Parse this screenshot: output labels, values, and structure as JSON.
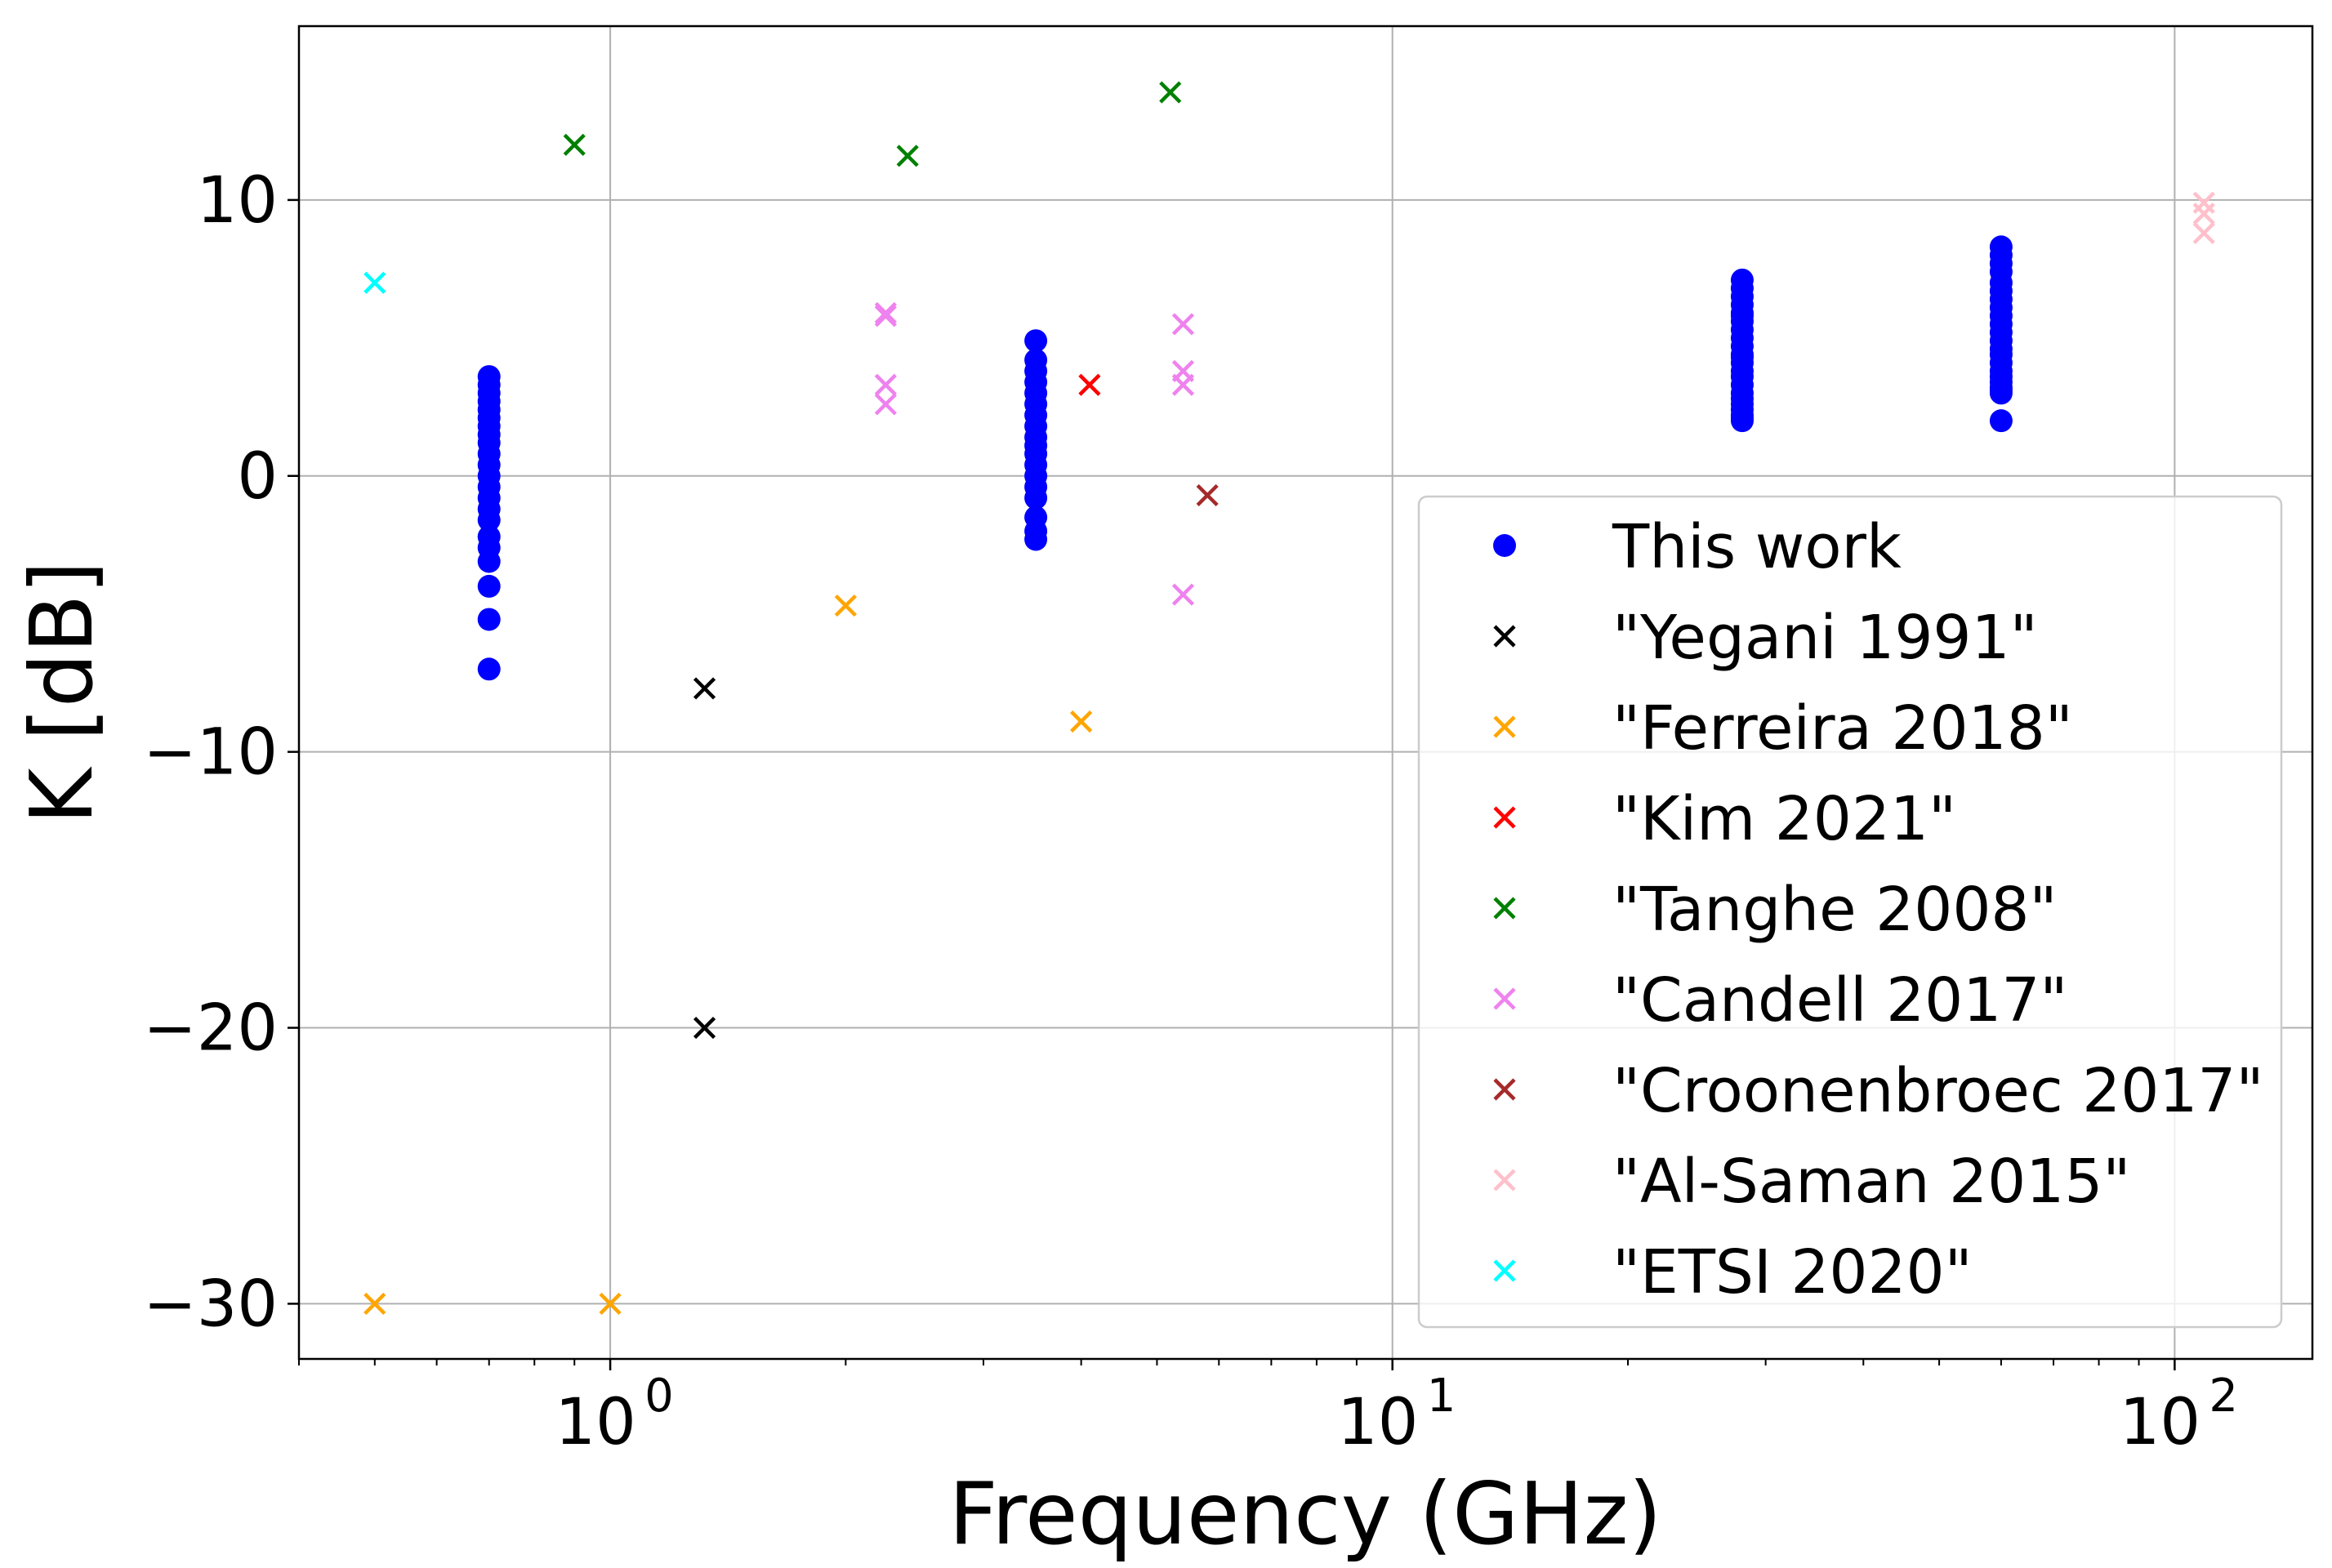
{
  "chart_data": {
    "type": "scatter",
    "title": "",
    "xlabel": "Frequency (GHz)",
    "ylabel": "K [dB]",
    "xscale": "log",
    "xlim": [
      0.4,
      150
    ],
    "ylim": [
      -32,
      16.3
    ],
    "xticks": [
      {
        "value": 1,
        "label": "10",
        "exp": "0"
      },
      {
        "value": 10,
        "label": "10",
        "exp": "1"
      },
      {
        "value": 100,
        "label": "10",
        "exp": "2"
      }
    ],
    "yticks": [
      {
        "value": 10,
        "label": "10"
      },
      {
        "value": 0,
        "label": "0"
      },
      {
        "value": -10,
        "label": "−10"
      },
      {
        "value": -20,
        "label": "−20"
      },
      {
        "value": -30,
        "label": "−30"
      }
    ],
    "grid": true,
    "legend_position": "center-right",
    "series": [
      {
        "name": "This work",
        "marker": "circle",
        "color": "#0000ff",
        "x": [
          0.7,
          0.7,
          0.7,
          0.7,
          0.7,
          0.7,
          0.7,
          0.7,
          0.7,
          0.7,
          0.7,
          0.7,
          0.7,
          0.7,
          0.7,
          0.7,
          0.7,
          0.7,
          0.7,
          0.7,
          0.7,
          0.7,
          3.5,
          3.5,
          3.5,
          3.5,
          3.5,
          3.5,
          3.5,
          3.5,
          3.5,
          3.5,
          3.5,
          3.5,
          3.5,
          3.5,
          3.5,
          3.5,
          3.5,
          3.5,
          28,
          28,
          28,
          28,
          28,
          28,
          28,
          28,
          28,
          28,
          28,
          28,
          28,
          28,
          28,
          28,
          28,
          28,
          28,
          28,
          28,
          28,
          28,
          60,
          60,
          60,
          60,
          60,
          60,
          60,
          60,
          60,
          60,
          60,
          60,
          60,
          60,
          60,
          60,
          60,
          60,
          60,
          60,
          60,
          60
        ],
        "y": [
          3.6,
          3.3,
          3.0,
          2.7,
          2.4,
          2.1,
          1.8,
          1.5,
          1.2,
          0.8,
          0.4,
          0.0,
          -0.4,
          -0.8,
          -1.2,
          -1.6,
          -2.2,
          -2.6,
          -3.1,
          -4.0,
          -5.2,
          -7.0,
          4.9,
          4.2,
          3.8,
          3.4,
          3.0,
          2.6,
          2.2,
          1.8,
          1.4,
          1.1,
          0.8,
          0.4,
          0.0,
          -0.4,
          -0.8,
          -1.5,
          -2.0,
          -2.3,
          7.1,
          6.8,
          6.5,
          6.2,
          5.9,
          5.6,
          5.3,
          5.0,
          4.7,
          4.4,
          4.1,
          3.8,
          3.6,
          3.3,
          3.0,
          2.8,
          2.6,
          2.4,
          2.2,
          2.1,
          2.0,
          4.3,
          5.8,
          8.3,
          8.0,
          7.7,
          7.4,
          7.0,
          6.7,
          6.4,
          6.1,
          5.8,
          5.5,
          5.2,
          4.9,
          4.6,
          4.4,
          4.1,
          3.8,
          3.6,
          3.4,
          3.2,
          3.1,
          3.0,
          2.0
        ]
      },
      {
        "name": "\"Yegani 1991\"",
        "marker": "x",
        "color": "#000000",
        "x": [
          1.32,
          1.32
        ],
        "y": [
          -7.7,
          -20.0
        ]
      },
      {
        "name": "\"Ferreira 2018\"",
        "marker": "x",
        "color": "#ffa500",
        "x": [
          0.5,
          1.0,
          2.0,
          4.0
        ],
        "y": [
          -30.0,
          -30.0,
          -4.7,
          -8.9
        ]
      },
      {
        "name": "\"Kim 2021\"",
        "marker": "x",
        "color": "#ff0000",
        "x": [
          4.1
        ],
        "y": [
          3.3
        ]
      },
      {
        "name": "\"Tanghe 2008\"",
        "marker": "x",
        "color": "#008000",
        "x": [
          0.9,
          2.4,
          5.2
        ],
        "y": [
          12.0,
          11.6,
          13.9
        ]
      },
      {
        "name": "\"Candell 2017\"",
        "marker": "x",
        "color": "#ee82ee",
        "x": [
          2.25,
          2.25,
          2.25,
          2.25,
          5.4,
          5.4,
          5.4,
          5.4
        ],
        "y": [
          5.9,
          5.8,
          3.3,
          2.6,
          5.5,
          3.8,
          3.3,
          -4.3
        ]
      },
      {
        "name": "\"Croonenbroec 2017\"",
        "marker": "x",
        "color": "#a52a2a",
        "x": [
          5.8
        ],
        "y": [
          -0.7
        ]
      },
      {
        "name": "\"Al-Saman 2015\"",
        "marker": "x",
        "color": "#ffc0cb",
        "x": [
          109,
          109,
          109
        ],
        "y": [
          9.9,
          9.5,
          8.8
        ]
      },
      {
        "name": "\"ETSI 2020\"",
        "marker": "x",
        "color": "#00ffff",
        "x": [
          0.5
        ],
        "y": [
          7.0
        ]
      }
    ]
  }
}
